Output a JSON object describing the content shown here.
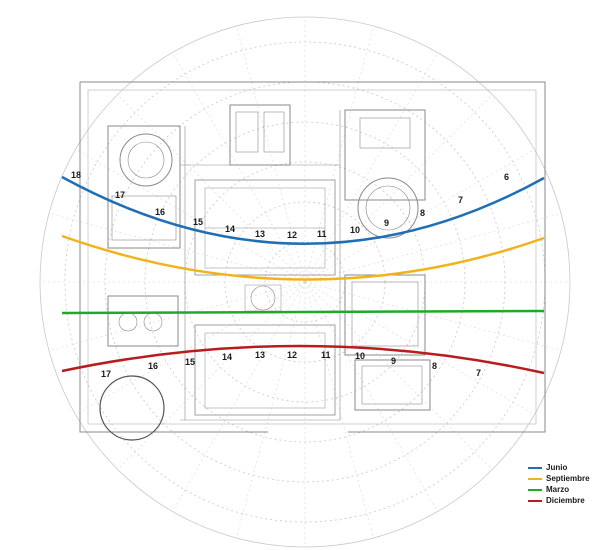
{
  "hour_labels": {
    "junio": [
      "18",
      "17",
      "16",
      "15",
      "14",
      "13",
      "12",
      "11",
      "10",
      "9",
      "8",
      "7",
      "6"
    ],
    "diciembre": [
      "17",
      "16",
      "15",
      "14",
      "13",
      "12",
      "11",
      "10",
      "9",
      "8",
      "7"
    ]
  },
  "legend": [
    {
      "label": "Junio",
      "color": "#1f6fb5"
    },
    {
      "label": "Septiembre",
      "color": "#f2b21a"
    },
    {
      "label": "Marzo",
      "color": "#1fa82a"
    },
    {
      "label": "Diciembre",
      "color": "#b81c1c"
    }
  ]
}
